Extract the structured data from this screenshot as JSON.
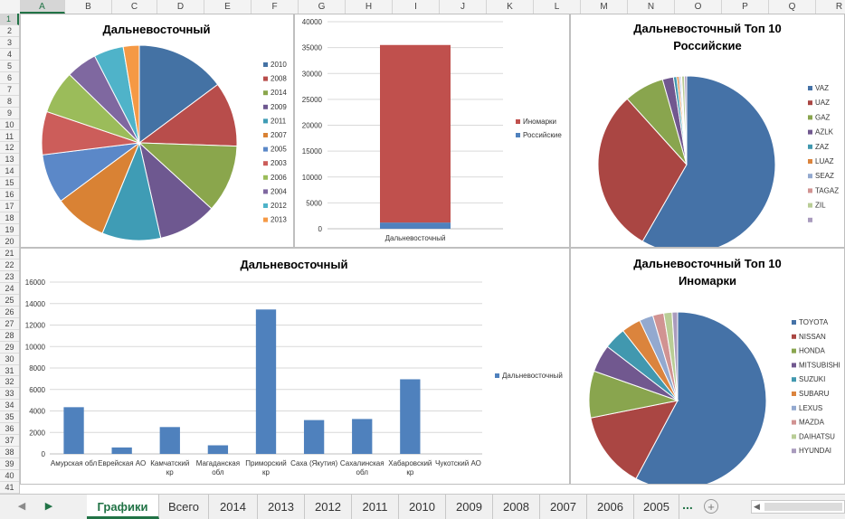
{
  "columns": [
    "A",
    "B",
    "C",
    "D",
    "E",
    "F",
    "G",
    "H",
    "I",
    "J",
    "K",
    "L",
    "M",
    "N",
    "O",
    "P",
    "Q",
    "R"
  ],
  "rows": [
    "1",
    "2",
    "3",
    "4",
    "5",
    "6",
    "7",
    "8",
    "9",
    "10",
    "11",
    "12",
    "13",
    "14",
    "15",
    "16",
    "17",
    "18",
    "19",
    "20",
    "21",
    "22",
    "23",
    "24",
    "25",
    "26",
    "27",
    "28",
    "29",
    "30",
    "31",
    "32",
    "33",
    "34",
    "35",
    "36",
    "37",
    "38",
    "39",
    "40",
    "41"
  ],
  "sheet_tabs": [
    "Графики",
    "Всего",
    "2014",
    "2013",
    "2012",
    "2011",
    "2010",
    "2009",
    "2008",
    "2007",
    "2006",
    "2005"
  ],
  "more_tabs": "...",
  "add_sheet": "+",
  "colors": {
    "accent": "#217346"
  },
  "charts": {
    "pie_years": {
      "title": "Дальневосточный",
      "labels": [
        "2010",
        "2008",
        "2014",
        "2009",
        "2011",
        "2007",
        "2005",
        "2003",
        "2006",
        "2004",
        "2012",
        "2013"
      ],
      "values": [
        14.5,
        10.5,
        11.0,
        9.5,
        9.5,
        8.5,
        8.0,
        7.0,
        7.0,
        5.0,
        4.8,
        2.6
      ],
      "colors": [
        "#4472a4",
        "#b84d4b",
        "#8aa64c",
        "#6e5890",
        "#3f9cb5",
        "#d98234",
        "#5b88c8",
        "#cc5d5a",
        "#9bbc5a",
        "#7f68a0",
        "#4fb3c9",
        "#f59945"
      ]
    },
    "stacked": {
      "category": "Дальневосточный",
      "series": [
        {
          "name": "Иномарки",
          "value": 34300,
          "color": "#c0504d"
        },
        {
          "name": "Российские",
          "value": 1200,
          "color": "#4f81bd"
        }
      ],
      "legend": [
        "Иномарки",
        "Российские"
      ],
      "legend_colors": [
        "#c0504d",
        "#4f81bd"
      ],
      "ticks": [
        "0",
        "5000",
        "10000",
        "15000",
        "20000",
        "25000",
        "30000",
        "35000",
        "40000"
      ],
      "ymax": 40000
    },
    "pie_ru": {
      "title_lines": [
        "Дальневосточный Топ 10",
        "Российские"
      ],
      "labels": [
        "VAZ",
        "UAZ",
        "GAZ",
        "AZLK",
        "ZAZ",
        "LUAZ",
        "SEAZ",
        "TAGAZ",
        "ZIL",
        ""
      ],
      "values": [
        58.3,
        30.0,
        7.3,
        2.0,
        0.6,
        0.4,
        0.3,
        0.2,
        0.5,
        0.4
      ],
      "colors": [
        "#4572a7",
        "#aa4643",
        "#89a54e",
        "#71588f",
        "#4198af",
        "#db843d",
        "#93a9cf",
        "#d19392",
        "#b9cd96",
        "#a99bbd"
      ]
    },
    "bar_regions": {
      "title": "Дальневосточный",
      "categories": [
        [
          "Амурская обл"
        ],
        [
          "Еврейская АО"
        ],
        [
          "Камчатский",
          "кр"
        ],
        [
          "Магаданская",
          "обл"
        ],
        [
          "Приморский",
          "кр"
        ],
        [
          "Саха (Якутия)"
        ],
        [
          "Сахалинская",
          "обл"
        ],
        [
          "Хабаровский",
          "кр"
        ],
        [
          "Чукотский АО"
        ]
      ],
      "values": [
        4350,
        600,
        2500,
        800,
        13450,
        3150,
        3250,
        6950,
        0
      ],
      "ticks": [
        "0",
        "2000",
        "4000",
        "6000",
        "8000",
        "10000",
        "12000",
        "14000",
        "16000"
      ],
      "ymax": 16000,
      "series_name": "Дальневосточный",
      "color": "#4f81bd"
    },
    "pie_foreign": {
      "title_lines": [
        "Дальневосточный Топ 10",
        "Иномарки"
      ],
      "labels": [
        "TOYOTA",
        "NISSAN",
        "HONDA",
        "MITSUBISHI",
        "SUZUKI",
        "SUBARU",
        "LEXUS",
        "MAZDA",
        "DAIHATSU",
        "HYUNDAI"
      ],
      "values": [
        57.5,
        14.0,
        8.5,
        5.0,
        4.0,
        3.5,
        2.5,
        2.0,
        1.5,
        1.0
      ],
      "colors": [
        "#4572a7",
        "#aa4643",
        "#89a54e",
        "#71588f",
        "#4198af",
        "#db843d",
        "#93a9cf",
        "#d19392",
        "#b9cd96",
        "#a99bbd"
      ]
    }
  }
}
